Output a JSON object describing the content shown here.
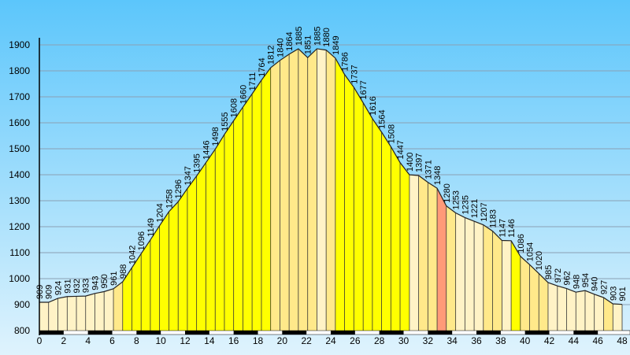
{
  "chart_data": {
    "type": "elevation-profile",
    "x": [
      0,
      0.76,
      1.52,
      2.29,
      3.05,
      3.81,
      4.57,
      5.33,
      6.1,
      6.86,
      7.62,
      8.38,
      9.14,
      9.9,
      10.67,
      11.43,
      12.19,
      12.95,
      13.71,
      14.48,
      15.24,
      16,
      16.76,
      17.52,
      18.29,
      19.05,
      19.81,
      20.57,
      21.33,
      22.1,
      22.86,
      23.62,
      24.38,
      25.14,
      25.9,
      26.67,
      27.43,
      28.19,
      28.95,
      29.71,
      30.48,
      31.24,
      32,
      32.76,
      33.52,
      34.29,
      35.05,
      35.81,
      36.57,
      37.33,
      38.1,
      38.86,
      39.62,
      40.38,
      41.14,
      41.9,
      42.67,
      43.43,
      44.19,
      44.95,
      45.71,
      46.48,
      47.24,
      48
    ],
    "values": [
      909,
      909,
      924,
      931,
      932,
      933,
      943,
      950,
      961,
      988,
      1042,
      1096,
      1149,
      1204,
      1258,
      1296,
      1347,
      1395,
      1446,
      1498,
      1555,
      1608,
      1660,
      1711,
      1764,
      1812,
      1840,
      1864,
      1885,
      1851,
      1885,
      1880,
      1849,
      1786,
      1737,
      1677,
      1616,
      1564,
      1508,
      1447,
      1400,
      1397,
      1371,
      1348,
      1280,
      1253,
      1235,
      1221,
      1207,
      1183,
      1147,
      1146,
      1086,
      1054,
      1020,
      985,
      972,
      962,
      948,
      954,
      940,
      927,
      903,
      901
    ],
    "xlim": [
      0,
      48
    ],
    "xticks": [
      0,
      2,
      4,
      6,
      8,
      10,
      12,
      14,
      16,
      18,
      20,
      22,
      24,
      26,
      28,
      30,
      32,
      34,
      36,
      38,
      40,
      42,
      44,
      46,
      48
    ],
    "ylim": [
      800,
      1900
    ],
    "yticks": [
      800,
      900,
      1000,
      1100,
      1200,
      1300,
      1400,
      1500,
      1600,
      1700,
      1800,
      1900
    ],
    "grid": true
  }
}
